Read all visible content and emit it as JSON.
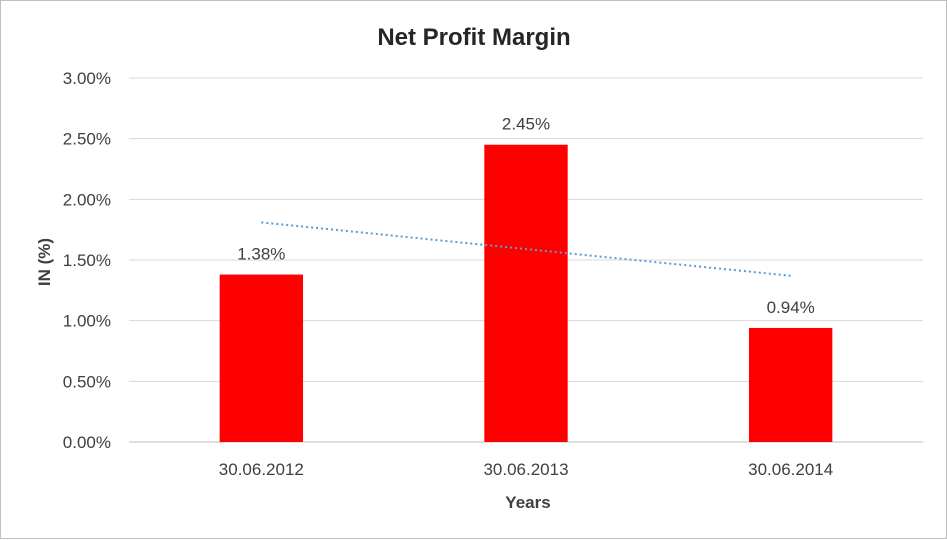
{
  "chart_data": {
    "type": "bar",
    "title": "Net Profit Margin",
    "xlabel": "Years",
    "ylabel": "IN (%)",
    "categories": [
      "30.06.2012",
      "30.06.2013",
      "30.06.2014"
    ],
    "values": [
      1.38,
      2.45,
      0.94
    ],
    "value_labels": [
      "1.38%",
      "2.45%",
      "0.94%"
    ],
    "ylim": [
      0,
      3
    ],
    "yticks": [
      0,
      0.5,
      1,
      1.5,
      2,
      2.5,
      3
    ],
    "ytick_labels": [
      "0.00%",
      "0.50%",
      "1.00%",
      "1.50%",
      "2.00%",
      "2.50%",
      "3.00%"
    ],
    "grid": true,
    "legend": "none",
    "trendline": {
      "type": "linear",
      "style": "dotted",
      "color": "#5b9bd5"
    },
    "colors": {
      "bar": "#ff0000",
      "grid": "#d9d9d9",
      "text": "#404040"
    }
  }
}
